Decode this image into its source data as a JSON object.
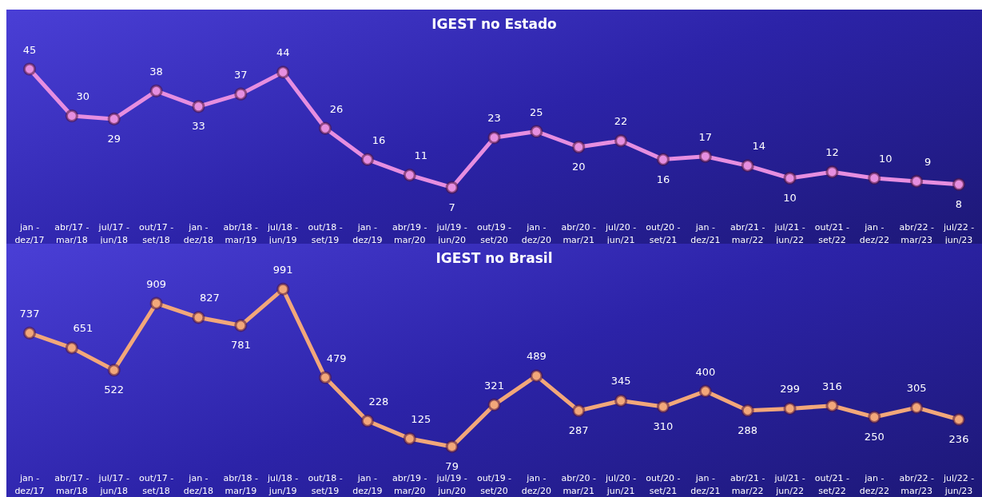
{
  "chart_data": [
    {
      "type": "line",
      "title": "IGEST no Estado",
      "categories": [
        "jan - dez/17",
        "abr/17 - mar/18",
        "jul/17 - jun/18",
        "out/17 - set/18",
        "jan - dez/18",
        "abr/18 - mar/19",
        "jul/18 - jun/19",
        "out/18 - set/19",
        "jan - dez/19",
        "abr/19 - mar/20",
        "jul/19 - jun/20",
        "out/19 - set/20",
        "jan - dez/20",
        "abr/20 - mar/21",
        "jul/20 - jun/21",
        "out/20 - set/21",
        "jan - dez/21",
        "abr/21 - mar/22",
        "jul/21 - jun/22",
        "out/21 - set/22",
        "jan - dez/22",
        "abr/22 - mar/23",
        "jul/22 - jun/23"
      ],
      "series": [
        {
          "color": "#e68ee0",
          "values": [
            45,
            30,
            29,
            38,
            33,
            37,
            44,
            26,
            16,
            11,
            7,
            23,
            25,
            20,
            22,
            16,
            17,
            14,
            10,
            12,
            10,
            9,
            8
          ]
        }
      ],
      "data_labels": true,
      "marker": "circle",
      "tick_labels": "x"
    },
    {
      "type": "line",
      "title": "IGEST no Brasil",
      "categories": [
        "jan - dez/17",
        "abr/17 - mar/18",
        "jul/17 - jun/18",
        "out/17 - set/18",
        "jan - dez/18",
        "abr/18 - mar/19",
        "jul/18 - jun/19",
        "out/18 - set/19",
        "jan - dez/19",
        "abr/19 - mar/20",
        "jul/19 - jun/20",
        "out/19 - set/20",
        "jan - dez/20",
        "abr/20 - mar/21",
        "jul/20 - jun/21",
        "out/20 - set/21",
        "jan - dez/21",
        "abr/21 - mar/22",
        "jul/21 - jun/22",
        "out/21 - set/22",
        "jan - dez/22",
        "abr/22 - mar/23",
        "jul/22 - jun/23"
      ],
      "series": [
        {
          "color": "#f2a77a",
          "values": [
            737,
            651,
            522,
            909,
            827,
            781,
            991,
            479,
            228,
            125,
            79,
            321,
            489,
            287,
            345,
            310,
            400,
            288,
            299,
            316,
            250,
            305,
            236
          ]
        }
      ],
      "data_labels": true,
      "marker": "circle",
      "tick_labels": "x"
    }
  ]
}
